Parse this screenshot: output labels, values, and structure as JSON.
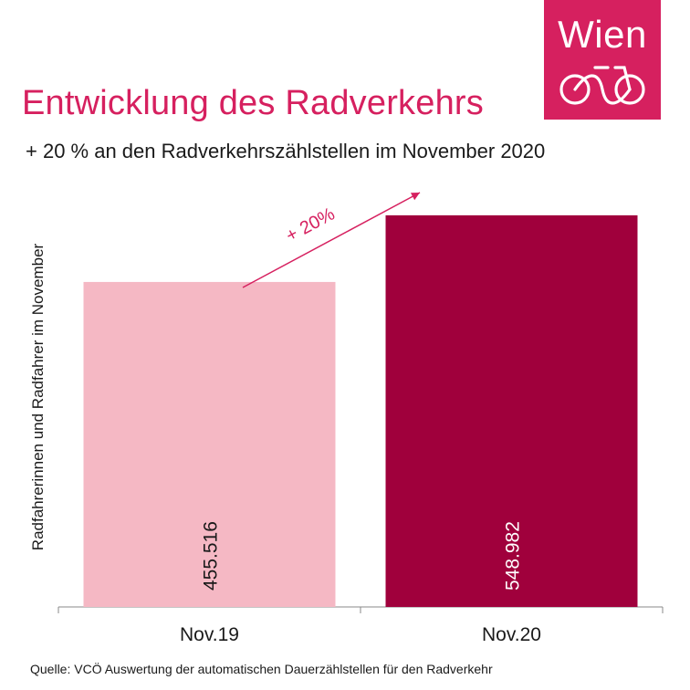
{
  "header": {
    "title": "Entwicklung des Radverkehrs",
    "subtitle": "+ 20 % an den Radverkehrszählstellen im November 2020"
  },
  "logo": {
    "text": "Wien",
    "icon": "bicycle-icon"
  },
  "source": "Quelle: VCÖ Auswertung der automatischen Dauerzählstellen für den Radverkehr",
  "annotation": {
    "text": "+ 20%",
    "color": "#d6205f"
  },
  "chart_data": {
    "type": "bar",
    "ylabel": "Radfahrerinnen und Radfahrer im November",
    "categories": [
      "Nov.19",
      "Nov.20"
    ],
    "values": [
      455516,
      548982
    ],
    "value_labels": [
      "455.516",
      "548.982"
    ],
    "colors": [
      "#f5b8c4",
      "#a0003c"
    ],
    "ylim": [
      0,
      600000
    ],
    "grid": false,
    "legend": "none"
  }
}
